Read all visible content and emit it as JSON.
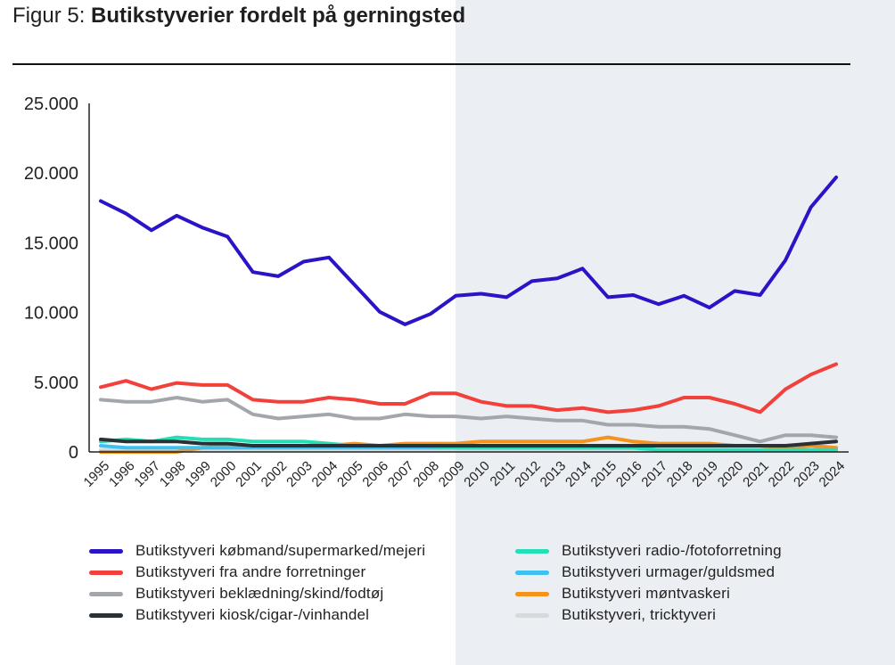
{
  "header": {
    "prefix": "Figur 5:",
    "title": "Butikstyverier fordelt på gerningsted"
  },
  "colors": {
    "background": "#ffffff",
    "shade": "#ebeef2",
    "axis": "#222222"
  },
  "chart_data": {
    "type": "line",
    "title": "Butikstyverier fordelt på gerningsted",
    "xlabel": "",
    "ylabel": "",
    "ylim": [
      0,
      25000
    ],
    "yticks": [
      0,
      5000,
      10000,
      15000,
      20000,
      25000
    ],
    "ytick_labels": [
      "0",
      "5.000",
      "10.000",
      "15.000",
      "20.000",
      "25.000"
    ],
    "grid": false,
    "legend_position": "bottom",
    "shaded_from_category": "2009",
    "categories": [
      "1995",
      "1996",
      "1997",
      "1998",
      "1999",
      "2000",
      "2001",
      "2002",
      "2003",
      "2004",
      "2005",
      "2006",
      "2007",
      "2008",
      "2009",
      "2010",
      "2011",
      "2012",
      "2013",
      "2014",
      "2015",
      "2016",
      "2017",
      "2018",
      "2019",
      "2020",
      "2021",
      "2022",
      "2023",
      "2024"
    ],
    "series": [
      {
        "name": "Butikstyveri købmand/supermarked/mejeri",
        "color": "#2a14c8",
        "values": [
          18000,
          17100,
          15900,
          16950,
          16100,
          15450,
          12900,
          12600,
          13650,
          13950,
          12000,
          10050,
          9150,
          9900,
          11200,
          11350,
          11100,
          12250,
          12450,
          13150,
          11100,
          11250,
          10600,
          11200,
          10350,
          11550,
          11250,
          13750,
          17550,
          19700
        ]
      },
      {
        "name": "Butikstyveri fra andre forretninger",
        "color": "#f2413a",
        "values": [
          4650,
          5100,
          4500,
          4950,
          4800,
          4800,
          3750,
          3600,
          3600,
          3900,
          3750,
          3450,
          3450,
          4200,
          4200,
          3600,
          3300,
          3300,
          3000,
          3150,
          2850,
          3000,
          3300,
          3900,
          3900,
          3450,
          2850,
          4500,
          5550,
          6300
        ]
      },
      {
        "name": "Butikstyveri beklædning/skind/fodtøj",
        "color": "#a3a7ab",
        "values": [
          3750,
          3600,
          3600,
          3900,
          3600,
          3750,
          2700,
          2400,
          2550,
          2700,
          2400,
          2400,
          2700,
          2550,
          2550,
          2400,
          2550,
          2400,
          2250,
          2250,
          1950,
          1950,
          1800,
          1800,
          1650,
          1200,
          750,
          1200,
          1200,
          1050
        ]
      },
      {
        "name": "Butikstyveri kiosk/cigar-/vinhandel",
        "color": "#2b3035",
        "values": [
          900,
          750,
          750,
          750,
          600,
          600,
          450,
          450,
          450,
          450,
          450,
          450,
          450,
          450,
          450,
          450,
          450,
          450,
          450,
          450,
          450,
          450,
          450,
          450,
          450,
          450,
          450,
          450,
          600,
          750
        ]
      },
      {
        "name": "Butikstyveri radio-/fotoforretning",
        "color": "#24dfb5",
        "values": [
          750,
          900,
          750,
          1050,
          900,
          900,
          750,
          750,
          750,
          600,
          450,
          450,
          450,
          450,
          300,
          300,
          300,
          300,
          300,
          300,
          300,
          300,
          150,
          150,
          150,
          150,
          150,
          150,
          150,
          150
        ]
      },
      {
        "name": "Butikstyveri urmager/guldsmed",
        "color": "#3dc1f0",
        "values": [
          450,
          300,
          300,
          300,
          300,
          300,
          300,
          300,
          300,
          300,
          300,
          300,
          300,
          300,
          300,
          300,
          300,
          300,
          300,
          300,
          300,
          300,
          150,
          150,
          150,
          150,
          150,
          150,
          150,
          150
        ]
      },
      {
        "name": "Butikstyveri møntvaskeri",
        "color": "#f5931c",
        "values": [
          0,
          0,
          0,
          0,
          300,
          450,
          450,
          450,
          450,
          450,
          600,
          450,
          600,
          600,
          600,
          750,
          750,
          750,
          750,
          750,
          1050,
          750,
          600,
          600,
          600,
          450,
          450,
          300,
          450,
          300
        ]
      },
      {
        "name": "Butikstyveri, tricktyveri",
        "color": "#d7dadd",
        "values": [
          150,
          150,
          150,
          150,
          150,
          150,
          150,
          150,
          150,
          150,
          150,
          150,
          150,
          150,
          150,
          150,
          150,
          150,
          150,
          150,
          150,
          150,
          150,
          150,
          150,
          150,
          150,
          150,
          150,
          150
        ]
      }
    ]
  }
}
